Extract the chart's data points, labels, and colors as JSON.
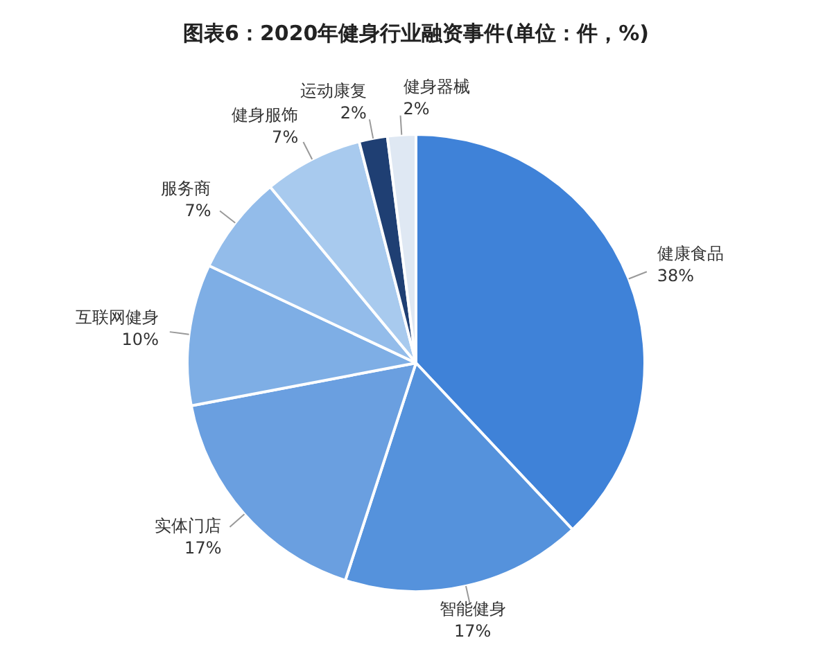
{
  "chart_data": {
    "type": "pie",
    "title": "图表6：2020年健身行业融资事件(单位：件，%)",
    "categories": [
      "健康食品",
      "智能健身",
      "实体门店",
      "互联网健身",
      "服务商",
      "健身服饰",
      "运动康复",
      "健身器械"
    ],
    "values": [
      38,
      17,
      17,
      10,
      7,
      7,
      2,
      2
    ],
    "colors": [
      "#3f82d8",
      "#5592dc",
      "#6a9fe0",
      "#7eaee5",
      "#93bcea",
      "#a8caee",
      "#1f3f73",
      "#dfe8f3"
    ],
    "value_labels": [
      "38%",
      "17%",
      "17%",
      "10%",
      "7%",
      "7%",
      "2%",
      "2%"
    ],
    "legend": false
  }
}
